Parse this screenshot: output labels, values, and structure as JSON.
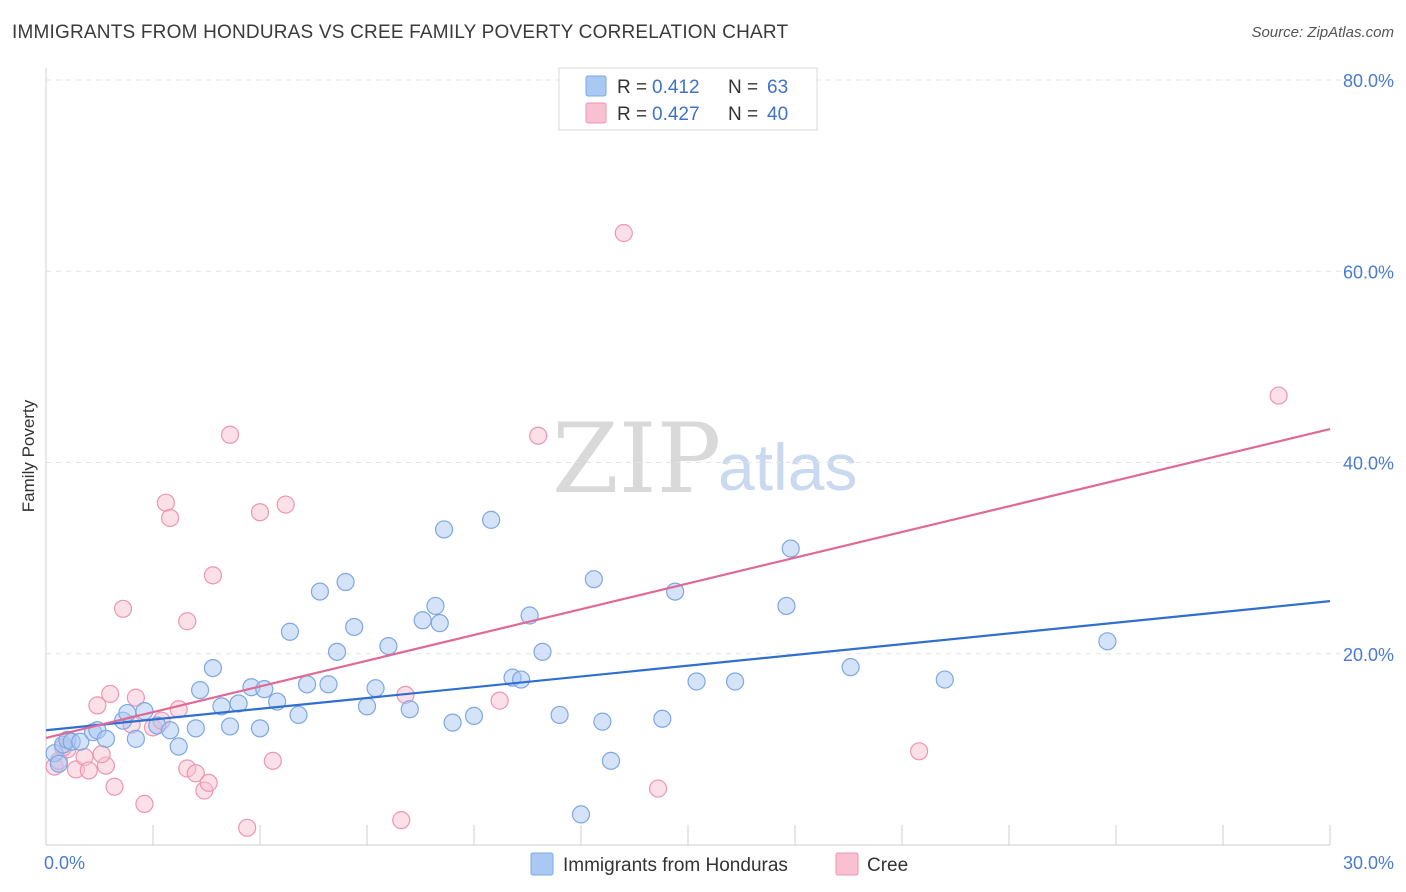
{
  "header": {
    "title": "IMMIGRANTS FROM HONDURAS VS CREE FAMILY POVERTY CORRELATION CHART",
    "source": "Source: ZipAtlas.com"
  },
  "watermark": {
    "zip": "ZIP",
    "atlas": "atlas"
  },
  "colors": {
    "blue_fill": "#a9c8f2",
    "blue_stroke": "#7ea7e4",
    "blue_line": "#2f6fcf",
    "pink_fill": "#f8c1d2",
    "pink_stroke": "#ee95b2",
    "pink_line": "#e06996",
    "tick_blue": "#4a7bd0"
  },
  "legend": {
    "rows": [
      {
        "r_label": "R =",
        "r_value": "0.412",
        "n_label": "N =",
        "n_value": "63"
      },
      {
        "r_label": "R =",
        "r_value": "0.427",
        "n_label": "N =",
        "n_value": "40"
      }
    ]
  },
  "bottom_legend": {
    "series_a": "Immigrants from Honduras",
    "series_b": "Cree"
  },
  "chart_data": {
    "type": "scatter",
    "title": "IMMIGRANTS FROM HONDURAS VS CREE FAMILY POVERTY CORRELATION CHART",
    "xlabel": "",
    "ylabel": "Family Poverty",
    "xlim": [
      0,
      30
    ],
    "ylim": [
      0,
      80
    ],
    "x_tick_labels": [
      "0.0%",
      "30.0%"
    ],
    "y_ticks": [
      20,
      40,
      60,
      80
    ],
    "y_tick_labels": [
      "20.0%",
      "40.0%",
      "60.0%",
      "80.0%"
    ],
    "grid": true,
    "legend_position": "top-center",
    "series": [
      {
        "name": "Immigrants from Honduras",
        "R": 0.412,
        "N": 63,
        "trend": {
          "x": [
            0,
            30
          ],
          "y": [
            12.0,
            25.5
          ]
        },
        "points": [
          [
            0.2,
            9.6
          ],
          [
            0.3,
            8.5
          ],
          [
            0.4,
            10.5
          ],
          [
            0.5,
            11.0
          ],
          [
            0.6,
            10.8
          ],
          [
            0.8,
            10.8
          ],
          [
            1.1,
            11.8
          ],
          [
            1.2,
            12.0
          ],
          [
            1.4,
            11.1
          ],
          [
            1.8,
            13.0
          ],
          [
            1.9,
            13.8
          ],
          [
            2.1,
            11.1
          ],
          [
            2.3,
            14.0
          ],
          [
            2.6,
            12.5
          ],
          [
            2.9,
            12.0
          ],
          [
            3.1,
            10.3
          ],
          [
            3.5,
            12.2
          ],
          [
            3.6,
            16.2
          ],
          [
            3.9,
            18.5
          ],
          [
            4.1,
            14.5
          ],
          [
            4.3,
            12.4
          ],
          [
            4.5,
            14.8
          ],
          [
            4.8,
            16.5
          ],
          [
            5.0,
            12.2
          ],
          [
            5.1,
            16.3
          ],
          [
            5.4,
            15.0
          ],
          [
            5.7,
            22.3
          ],
          [
            5.9,
            13.6
          ],
          [
            6.1,
            16.8
          ],
          [
            6.4,
            26.5
          ],
          [
            6.6,
            16.8
          ],
          [
            6.8,
            20.2
          ],
          [
            7.0,
            27.5
          ],
          [
            7.2,
            22.8
          ],
          [
            7.5,
            14.5
          ],
          [
            7.7,
            16.4
          ],
          [
            8.0,
            20.8
          ],
          [
            8.5,
            14.2
          ],
          [
            8.8,
            23.5
          ],
          [
            9.1,
            25.0
          ],
          [
            9.2,
            23.2
          ],
          [
            9.5,
            12.8
          ],
          [
            9.3,
            33.0
          ],
          [
            10.0,
            13.5
          ],
          [
            10.4,
            34.0
          ],
          [
            10.9,
            17.5
          ],
          [
            11.1,
            17.3
          ],
          [
            11.3,
            24.0
          ],
          [
            11.6,
            20.2
          ],
          [
            12.0,
            13.6
          ],
          [
            12.8,
            27.8
          ],
          [
            13.0,
            12.9
          ],
          [
            13.2,
            8.8
          ],
          [
            14.4,
            13.2
          ],
          [
            14.7,
            26.5
          ],
          [
            15.2,
            17.1
          ],
          [
            16.1,
            17.1
          ],
          [
            17.3,
            25.0
          ],
          [
            17.4,
            31.0
          ],
          [
            18.8,
            18.6
          ],
          [
            21.0,
            17.3
          ],
          [
            24.8,
            21.3
          ],
          [
            12.5,
            3.2
          ]
        ]
      },
      {
        "name": "Cree",
        "R": 0.427,
        "N": 40,
        "trend": {
          "x": [
            0,
            30
          ],
          "y": [
            11.2,
            43.5
          ]
        },
        "points": [
          [
            0.2,
            8.2
          ],
          [
            0.3,
            8.8
          ],
          [
            0.5,
            10.0
          ],
          [
            0.7,
            7.9
          ],
          [
            0.9,
            9.2
          ],
          [
            1.0,
            7.8
          ],
          [
            1.2,
            14.6
          ],
          [
            1.4,
            8.3
          ],
          [
            1.5,
            15.8
          ],
          [
            1.6,
            6.1
          ],
          [
            1.8,
            24.7
          ],
          [
            2.0,
            12.6
          ],
          [
            2.1,
            15.4
          ],
          [
            2.3,
            4.3
          ],
          [
            2.5,
            12.3
          ],
          [
            2.7,
            13.0
          ],
          [
            2.8,
            35.8
          ],
          [
            2.9,
            34.2
          ],
          [
            3.1,
            14.2
          ],
          [
            3.3,
            8.0
          ],
          [
            3.3,
            23.4
          ],
          [
            3.5,
            7.5
          ],
          [
            3.7,
            5.7
          ],
          [
            3.8,
            6.5
          ],
          [
            3.9,
            28.2
          ],
          [
            4.3,
            42.9
          ],
          [
            4.7,
            1.8
          ],
          [
            5.0,
            34.8
          ],
          [
            5.3,
            8.8
          ],
          [
            5.6,
            35.6
          ],
          [
            8.3,
            2.6
          ],
          [
            8.4,
            15.7
          ],
          [
            10.6,
            15.1
          ],
          [
            11.5,
            42.8
          ],
          [
            13.5,
            64.0
          ],
          [
            14.3,
            5.9
          ],
          [
            20.4,
            9.8
          ],
          [
            28.8,
            47.0
          ],
          [
            0.4,
            10.2
          ],
          [
            1.3,
            9.5
          ]
        ]
      }
    ]
  }
}
